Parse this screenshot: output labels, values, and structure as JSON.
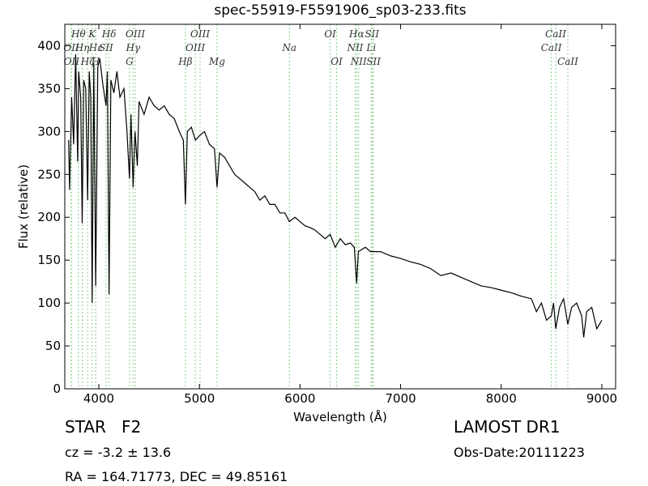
{
  "chart_data": {
    "type": "line",
    "title": "spec-55919-F5591906_sp03-233.fits",
    "x_label": "Wavelength (Å)",
    "y_label": "Flux (relative)",
    "xlim": [
      3662,
      9137
    ],
    "ylim": [
      0,
      425
    ],
    "xticks": [
      4000,
      5000,
      6000,
      7000,
      8000,
      9000
    ],
    "yticks": [
      0,
      50,
      100,
      150,
      200,
      250,
      300,
      350,
      400
    ],
    "color": "#000000",
    "line_color": "#6abf69",
    "x": [
      3700,
      3710,
      3730,
      3750,
      3770,
      3790,
      3800,
      3820,
      3835,
      3850,
      3870,
      3889,
      3905,
      3920,
      3934,
      3950,
      3969,
      3990,
      4010,
      4040,
      4072,
      4085,
      4102,
      4120,
      4150,
      4180,
      4210,
      4250,
      4280,
      4305,
      4320,
      4341,
      4360,
      4383,
      4400,
      4450,
      4500,
      4550,
      4600,
      4650,
      4700,
      4750,
      4800,
      4840,
      4861,
      4880,
      4920,
      4960,
      5000,
      5050,
      5100,
      5150,
      5175,
      5200,
      5250,
      5300,
      5350,
      5400,
      5450,
      5500,
      5550,
      5600,
      5650,
      5700,
      5750,
      5800,
      5850,
      5894,
      5950,
      6000,
      6050,
      6100,
      6150,
      6200,
      6250,
      6300,
      6350,
      6400,
      6450,
      6500,
      6540,
      6563,
      6580,
      6650,
      6700,
      6800,
      6900,
      7000,
      7100,
      7200,
      7300,
      7400,
      7500,
      7600,
      7700,
      7800,
      7900,
      8000,
      8100,
      8200,
      8300,
      8350,
      8400,
      8450,
      8498,
      8520,
      8542,
      8580,
      8620,
      8662,
      8700,
      8750,
      8800,
      8820,
      8850,
      8900,
      8950,
      9000
    ],
    "values": [
      290,
      232,
      340,
      285,
      390,
      265,
      370,
      340,
      193,
      360,
      350,
      220,
      370,
      340,
      100,
      380,
      120,
      375,
      385,
      355,
      330,
      370,
      110,
      360,
      345,
      370,
      340,
      350,
      300,
      245,
      320,
      235,
      300,
      260,
      335,
      320,
      340,
      330,
      325,
      330,
      320,
      315,
      300,
      290,
      215,
      300,
      305,
      290,
      295,
      300,
      285,
      280,
      235,
      275,
      270,
      260,
      250,
      245,
      240,
      235,
      230,
      220,
      225,
      215,
      215,
      205,
      205,
      195,
      200,
      195,
      190,
      188,
      185,
      180,
      175,
      180,
      165,
      175,
      168,
      170,
      165,
      123,
      160,
      165,
      160,
      160,
      155,
      152,
      148,
      145,
      140,
      132,
      135,
      130,
      125,
      120,
      118,
      115,
      112,
      108,
      105,
      90,
      100,
      80,
      85,
      100,
      70,
      95,
      105,
      75,
      95,
      100,
      85,
      60,
      90,
      95,
      70,
      80
    ],
    "lines": [
      {
        "label": "OII",
        "x": 3727,
        "row": 2
      },
      {
        "label": "OII",
        "x": 3729,
        "row": 3
      },
      {
        "label": "Hθ",
        "x": 3798,
        "row": 1
      },
      {
        "label": "Hη",
        "x": 3835,
        "row": 2
      },
      {
        "label": "Hζ",
        "x": 3889,
        "row": 3
      },
      {
        "label": "K",
        "x": 3934,
        "row": 1
      },
      {
        "label": "Hε",
        "x": 3970,
        "row": 2
      },
      {
        "label": "H",
        "x": 3969,
        "row": 3
      },
      {
        "label": "SII",
        "x": 4072,
        "row": 2
      },
      {
        "label": "Hδ",
        "x": 4102,
        "row": 1
      },
      {
        "label": "G",
        "x": 4305,
        "row": 3
      },
      {
        "label": "Hγ",
        "x": 4341,
        "row": 2
      },
      {
        "label": "OIII",
        "x": 4363,
        "row": 1
      },
      {
        "label": "Hβ",
        "x": 4861,
        "row": 3
      },
      {
        "label": "OIII",
        "x": 4959,
        "row": 2
      },
      {
        "label": "OIII",
        "x": 5007,
        "row": 1
      },
      {
        "label": "Mg",
        "x": 5175,
        "row": 3
      },
      {
        "label": "Na",
        "x": 5894,
        "row": 2
      },
      {
        "label": "OI",
        "x": 6300,
        "row": 1
      },
      {
        "label": "OI",
        "x": 6364,
        "row": 3
      },
      {
        "label": "NII",
        "x": 6548,
        "row": 2
      },
      {
        "label": "Hα",
        "x": 6563,
        "row": 1
      },
      {
        "label": "NII",
        "x": 6583,
        "row": 3
      },
      {
        "label": "Li",
        "x": 6708,
        "row": 2
      },
      {
        "label": "SII",
        "x": 6716,
        "row": 1
      },
      {
        "label": "SII",
        "x": 6731,
        "row": 3
      },
      {
        "label": "CaII",
        "x": 8498,
        "row": 2
      },
      {
        "label": "CaII",
        "x": 8542,
        "row": 1
      },
      {
        "label": "CaII",
        "x": 8662,
        "row": 3
      }
    ],
    "info": {
      "class": "STAR   F2",
      "cz": "cz = -3.2 ± 13.6",
      "coords": "RA = 164.71773, DEC = 49.85161",
      "survey": "LAMOST DR1",
      "date": "Obs-Date:20111223"
    }
  }
}
